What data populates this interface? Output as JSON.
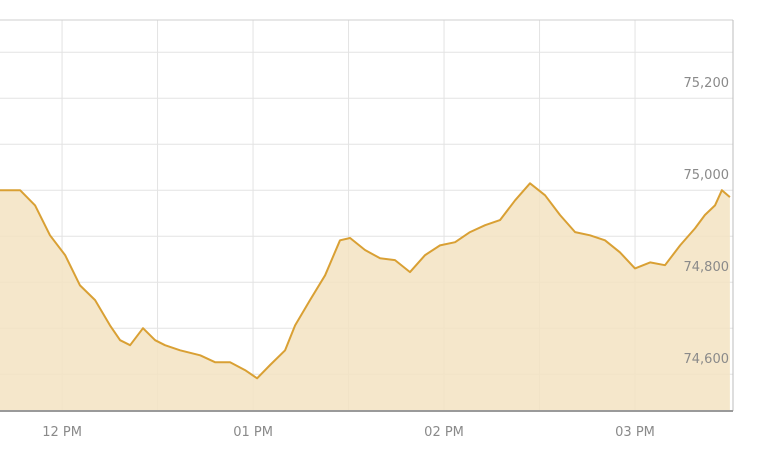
{
  "chart_data": {
    "type": "area",
    "x": [
      11.675,
      11.78,
      11.859,
      11.937,
      12.016,
      12.094,
      12.173,
      12.251,
      12.304,
      12.356,
      12.424,
      12.487,
      12.539,
      12.618,
      12.723,
      12.801,
      12.88,
      12.958,
      13.021,
      13.089,
      13.168,
      13.22,
      13.298,
      13.377,
      13.455,
      13.508,
      13.586,
      13.665,
      13.743,
      13.822,
      13.901,
      13.979,
      14.058,
      14.136,
      14.215,
      14.293,
      14.372,
      14.45,
      14.529,
      14.607,
      14.686,
      14.764,
      14.843,
      14.921,
      15.0,
      15.079,
      15.157,
      15.236,
      15.314,
      15.366,
      15.419,
      15.455,
      15.497
    ],
    "values": [
      75000,
      75000,
      74967,
      74902,
      74859,
      74793,
      74761,
      74706,
      74674,
      74663,
      74700,
      74674,
      74663,
      74652,
      74641,
      74626,
      74626,
      74609,
      74591,
      74620,
      74652,
      74706,
      74761,
      74815,
      74891,
      74896,
      74870,
      74852,
      74848,
      74822,
      74859,
      74880,
      74887,
      74909,
      74924,
      74935,
      74978,
      75015,
      74989,
      74946,
      74909,
      74902,
      74891,
      74865,
      74830,
      74843,
      74837,
      74880,
      74917,
      74946,
      74967,
      75000,
      74985
    ],
    "line_color": "#d9a034",
    "fill_color": "#f3e3c2",
    "xlim": [
      11.675,
      15.513
    ],
    "ylim": [
      74520,
      75370
    ],
    "xticks": [
      {
        "value": 12,
        "label": "12 PM"
      },
      {
        "value": 13,
        "label": "01 PM"
      },
      {
        "value": 14,
        "label": "02 PM"
      },
      {
        "value": 15,
        "label": "03 PM"
      }
    ],
    "minor_xticks": [
      12.5,
      13.5,
      14.5
    ],
    "yticks": [
      {
        "value": 74600,
        "label": "74,600"
      },
      {
        "value": 74800,
        "label": "74,800"
      },
      {
        "value": 75000,
        "label": "75,000"
      },
      {
        "value": 75200,
        "label": "75,200"
      }
    ],
    "minor_yticks": [
      74700,
      74900,
      75100,
      75300
    ],
    "grid": true
  }
}
